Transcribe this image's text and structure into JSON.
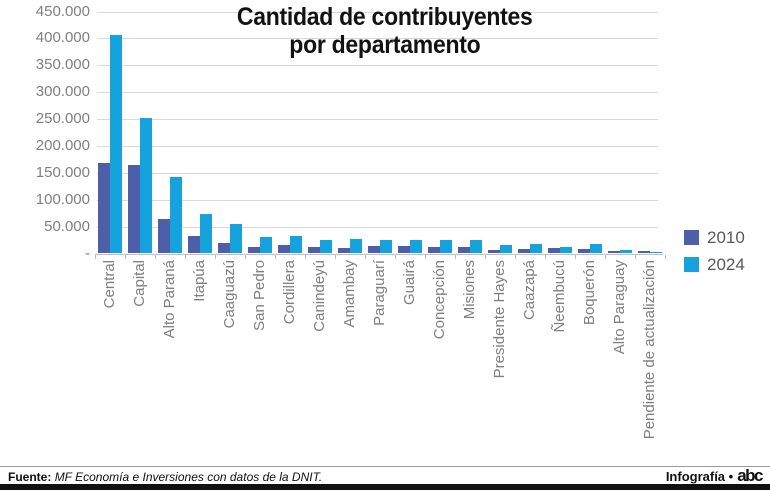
{
  "title": {
    "line1": "Cantidad de contribuyentes",
    "line2": "por departamento"
  },
  "chart_data": {
    "type": "bar",
    "title": "Cantidad de contribuyentes por departamento",
    "categories": [
      "Central",
      "Capital",
      "Alto Paraná",
      "Itapúa",
      "Caaguazú",
      "San Pedro",
      "Cordillera",
      "Canindeyú",
      "Amambay",
      "Paraguarí",
      "Guairá",
      "Concepción",
      "Misiones",
      "Presidente Hayes",
      "Caazapá",
      "Ñeembucú",
      "Boquerón",
      "Alto Paraguay",
      "Pendiente de actualización"
    ],
    "series": [
      {
        "name": "2010",
        "color": "#4c5fa8",
        "values": [
          168000,
          165000,
          65000,
          33000,
          19000,
          13000,
          15000,
          12000,
          11000,
          14000,
          14000,
          13000,
          12000,
          7000,
          8000,
          10000,
          8000,
          5000,
          4000
        ]
      },
      {
        "name": "2024",
        "color": "#16a3dd",
        "values": [
          406000,
          252000,
          142000,
          73000,
          55000,
          30000,
          32000,
          26000,
          27000,
          25000,
          26000,
          25000,
          26000,
          15000,
          17000,
          12000,
          18000,
          6000,
          3000
        ]
      }
    ],
    "xlabel": "",
    "ylabel": "",
    "ylim": [
      0,
      450000
    ],
    "ytick_step": 50000,
    "ytick_labels_top_down": [
      "450.000",
      "400.000",
      "350.000",
      "300.000",
      "250.000",
      "200.000",
      "150.000",
      "100.000",
      "50.000",
      "-"
    ],
    "grid": true,
    "legend_position": "right"
  },
  "footer": {
    "source_label": "Fuente:",
    "source_text": "MF Economía e Inversiones con datos de la DNIT.",
    "credit_text": "Infografía •",
    "logo_text": "abc"
  }
}
